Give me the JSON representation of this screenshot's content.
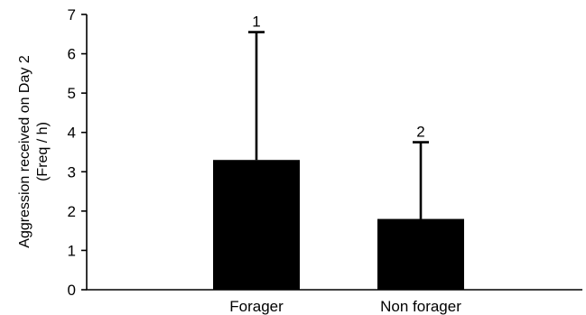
{
  "chart_data": {
    "type": "bar",
    "categories": [
      "Forager",
      "Non forager"
    ],
    "values": [
      3.3,
      1.8
    ],
    "error_upper": [
      6.55,
      3.75
    ],
    "annotations": [
      "1",
      "2"
    ],
    "ylabel_lines": [
      "Aggression received on Day 2",
      "(Freq / h)"
    ],
    "xlabel": "",
    "ylim": [
      0,
      7
    ],
    "yticks": [
      "0",
      "1",
      "2",
      "3",
      "4",
      "5",
      "6",
      "7"
    ],
    "grid": false,
    "legend": "none",
    "bar_color": "#000000"
  }
}
